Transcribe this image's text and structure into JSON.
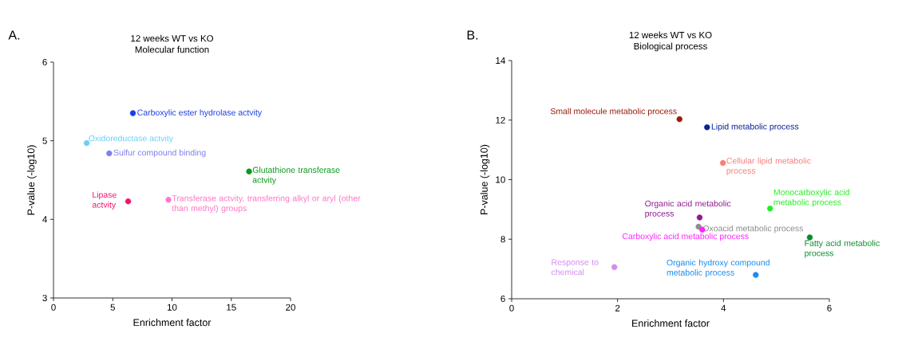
{
  "chart_data": [
    {
      "type": "scatter",
      "title": "12 weeks WT vs KO",
      "subtitle": "Molecular function",
      "xlabel": "Enrichment factor",
      "ylabel": "P-value (-log10)",
      "xlim": [
        0,
        20
      ],
      "ylim": [
        3,
        6
      ],
      "xticks": [
        0,
        5,
        10,
        15,
        20
      ],
      "yticks": [
        3,
        4,
        5,
        6
      ],
      "marker": "circle",
      "annotations": [
        "A."
      ],
      "series": [
        {
          "name": "Carboxylic ester hydrolase actvity",
          "color": "#1a3de6",
          "x": [
            6.7
          ],
          "values": [
            5.35
          ]
        },
        {
          "name": "Oxidoreductase actvity",
          "color": "#6ccff6",
          "x": [
            2.8
          ],
          "values": [
            4.97
          ]
        },
        {
          "name": "Sulfur compound binding",
          "color": "#7f7ff0",
          "x": [
            4.7
          ],
          "values": [
            4.84
          ]
        },
        {
          "name": "Glutathione transferase actvity",
          "color": "#0a9a1a",
          "x": [
            16.5
          ],
          "values": [
            4.61
          ]
        },
        {
          "name": "Lipase actvity",
          "color": "#f0146e",
          "x": [
            6.3
          ],
          "values": [
            4.23
          ]
        },
        {
          "name": "Transferase actvity, transferring alkyl or aryl (other than methyl) groups",
          "color": "#ff78c8",
          "x": [
            9.7
          ],
          "values": [
            4.25
          ]
        }
      ]
    },
    {
      "type": "scatter",
      "title": "12 weeks WT vs KO",
      "subtitle": "Biological process",
      "xlabel": "Enrichment factor",
      "ylabel": "P-value (-log10)",
      "xlim": [
        0,
        6
      ],
      "ylim": [
        6,
        14
      ],
      "xticks": [
        0,
        2,
        4,
        6
      ],
      "yticks": [
        6,
        8,
        10,
        12,
        14
      ],
      "marker": "circle",
      "annotations": [
        "B."
      ],
      "series": [
        {
          "name": "Small molecule metabolic process",
          "color": "#9b1b0a",
          "x": [
            3.17
          ],
          "values": [
            12.03
          ]
        },
        {
          "name": "Lipid metabolic process",
          "color": "#0a2299",
          "x": [
            3.69
          ],
          "values": [
            11.76
          ]
        },
        {
          "name": "Cellular lipid metabolic process",
          "color": "#f77f7a",
          "x": [
            3.99
          ],
          "values": [
            10.56
          ]
        },
        {
          "name": "Monocarboxylic acid metabolic process",
          "color": "#22ee22",
          "x": [
            4.88
          ],
          "values": [
            9.03
          ]
        },
        {
          "name": "Organic acid metabolic process",
          "color": "#8e1a8e",
          "x": [
            3.55
          ],
          "values": [
            8.73
          ]
        },
        {
          "name": "Oxoacid metabolic process",
          "color": "#8c8c8c",
          "x": [
            3.53
          ],
          "values": [
            8.42
          ]
        },
        {
          "name": "Carboxylic acid metabolic process",
          "color": "#ff22ff",
          "x": [
            3.6
          ],
          "values": [
            8.32
          ]
        },
        {
          "name": "Fatty acid metabolic process",
          "color": "#0a8a2a",
          "x": [
            5.63
          ],
          "values": [
            8.06
          ]
        },
        {
          "name": "Response to chemical",
          "color": "#d58af0",
          "x": [
            1.94
          ],
          "values": [
            7.06
          ]
        },
        {
          "name": "Organic hydroxy compound metabolic process",
          "color": "#1a8cf0",
          "x": [
            4.61
          ],
          "values": [
            6.8
          ]
        }
      ]
    }
  ]
}
